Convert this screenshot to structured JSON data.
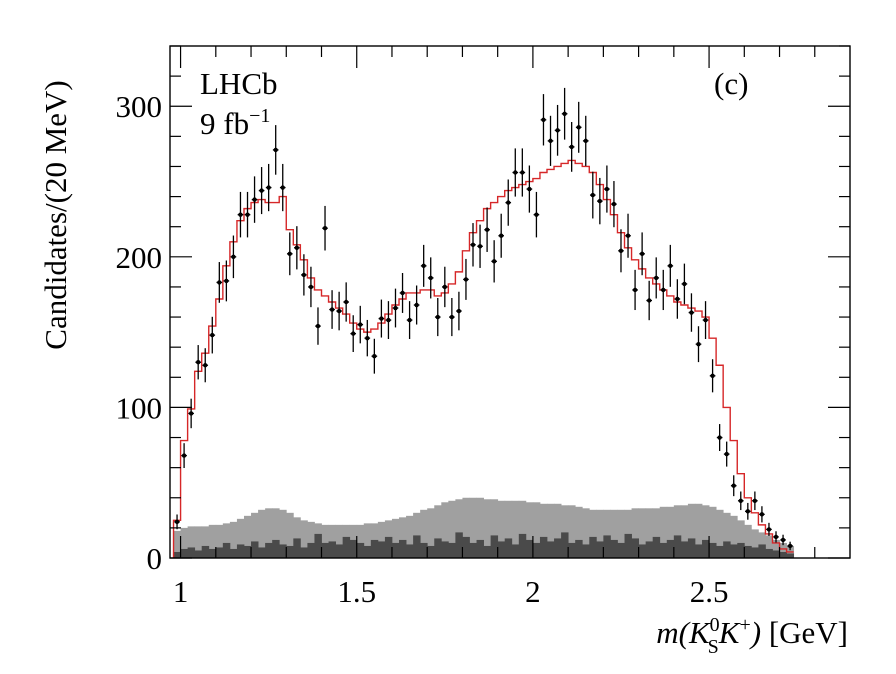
{
  "chart_data": {
    "type": "histogram",
    "title": "",
    "xlabel_parts": {
      "m": "m",
      "open": "(",
      "k1": "K",
      "k1_sup": "0",
      "k1_sub": "S",
      "k2": "K",
      "k2_sup": "+",
      "close": ")",
      "unit": " [GeV]"
    },
    "ylabel": "Candidates/(20 MeV)",
    "xlim": [
      0.97,
      2.9
    ],
    "ylim": [
      0,
      340
    ],
    "x_ticks": [
      1,
      1.5,
      2,
      2.5
    ],
    "x_tick_labels": [
      "1",
      "1.5",
      "2",
      "2.5"
    ],
    "y_ticks": [
      0,
      100,
      200,
      300
    ],
    "y_tick_labels": [
      "0",
      "100",
      "200",
      "300"
    ],
    "annotations": {
      "experiment": "LHCb",
      "lumi_value": "9 fb",
      "lumi_exp": "−1",
      "panel": "(c)"
    },
    "colors": {
      "fit": "#d62728",
      "data": "#000000",
      "bkg_light": "#a0a0a0",
      "bkg_dark": "#4a4a4a"
    },
    "bin_width": 0.02,
    "bin_start": 0.98,
    "series": [
      {
        "name": "Data",
        "kind": "points",
        "values": [
          24,
          68,
          96,
          130,
          128,
          148,
          183,
          184,
          200,
          228,
          228,
          238,
          244,
          246,
          271,
          246,
          202,
          206,
          188,
          180,
          154,
          219,
          165,
          164,
          170,
          149,
          155,
          146,
          134,
          159,
          158,
          166,
          176,
          158,
          168,
          194,
          186,
          160,
          180,
          160,
          164,
          185,
          208,
          207,
          218,
          197,
          214,
          236,
          256,
          256,
          245,
          228,
          291,
          277,
          284,
          295,
          273,
          286,
          277,
          241,
          237,
          245,
          235,
          204,
          214,
          178,
          202,
          171,
          186,
          178,
          194,
          172,
          182,
          163,
          142,
          158,
          121,
          80,
          69,
          48,
          38,
          31,
          38,
          29,
          19,
          14,
          12,
          8
        ]
      },
      {
        "name": "Fit",
        "kind": "step",
        "values": [
          25,
          78,
          99,
          124,
          136,
          154,
          172,
          194,
          210,
          224,
          232,
          236,
          238,
          236,
          236,
          240,
          218,
          208,
          198,
          186,
          178,
          174,
          170,
          166,
          162,
          156,
          152,
          150,
          152,
          156,
          162,
          168,
          172,
          176,
          176,
          178,
          178,
          174,
          176,
          182,
          190,
          204,
          216,
          224,
          232,
          236,
          240,
          244,
          246,
          248,
          250,
          252,
          256,
          258,
          260,
          262,
          264,
          262,
          260,
          256,
          248,
          238,
          228,
          216,
          206,
          198,
          192,
          186,
          182,
          178,
          174,
          170,
          168,
          166,
          164,
          160,
          146,
          128,
          100,
          78,
          56,
          40,
          30,
          22,
          16,
          10,
          6,
          4
        ]
      },
      {
        "name": "Background (total)",
        "kind": "fill",
        "values": [
          18,
          20,
          21,
          21,
          21,
          22,
          22,
          23,
          24,
          26,
          28,
          30,
          32,
          33,
          33,
          32,
          30,
          27,
          25,
          24,
          23,
          22,
          22,
          22,
          22,
          22,
          22,
          23,
          23,
          24,
          25,
          26,
          27,
          28,
          30,
          32,
          33,
          35,
          37,
          38,
          39,
          40,
          40,
          40,
          39,
          39,
          38,
          38,
          38,
          38,
          37,
          37,
          36,
          36,
          36,
          35,
          35,
          34,
          33,
          32,
          32,
          32,
          32,
          32,
          32,
          33,
          33,
          33,
          33,
          34,
          34,
          35,
          35,
          36,
          36,
          35,
          34,
          32,
          30,
          28,
          25,
          22,
          19,
          17,
          15,
          12,
          10,
          8
        ]
      },
      {
        "name": "Background (component)",
        "kind": "fill",
        "values": [
          4,
          6,
          7,
          5,
          8,
          6,
          7,
          10,
          6,
          9,
          8,
          11,
          7,
          10,
          12,
          9,
          8,
          13,
          7,
          10,
          16,
          10,
          11,
          9,
          14,
          12,
          10,
          8,
          12,
          11,
          14,
          10,
          12,
          9,
          15,
          10,
          8,
          13,
          11,
          10,
          17,
          14,
          10,
          12,
          8,
          15,
          11,
          13,
          9,
          16,
          12,
          10,
          14,
          11,
          13,
          17,
          10,
          12,
          9,
          14,
          11,
          15,
          12,
          10,
          16,
          13,
          9,
          11,
          14,
          10,
          12,
          15,
          11,
          13,
          9,
          12,
          10,
          8,
          11,
          9,
          10,
          8,
          7,
          9,
          6,
          5,
          4,
          3
        ]
      }
    ]
  }
}
